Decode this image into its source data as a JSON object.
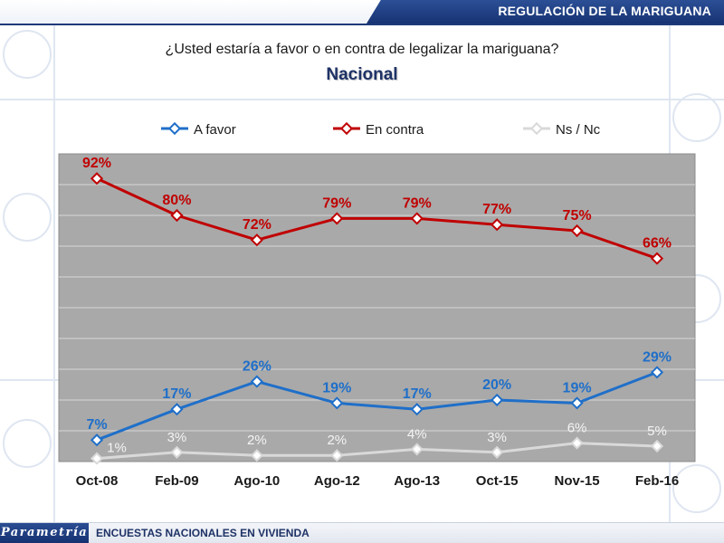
{
  "header": {
    "section_title": "REGULACIÓN DE LA MARIGUANA"
  },
  "question": "¿Usted estaría a favor o en contra de legalizar la mariguana?",
  "subtitle": "Nacional",
  "footer": {
    "logo_text": "Parametría",
    "text": "ENCUESTAS NACIONALES EN VIVIENDA"
  },
  "colors": {
    "plot_background": "#a9a9a9",
    "a_favor": "#1f6fc9",
    "en_contra": "#c00000",
    "ns_nc": "#d9d9d9",
    "brand": "#1e3266"
  },
  "chart_data": {
    "type": "line",
    "categories": [
      "Oct-08",
      "Feb-09",
      "Ago-10",
      "Ago-12",
      "Ago-13",
      "Oct-15",
      "Nov-15",
      "Feb-16"
    ],
    "series": [
      {
        "name": "A favor",
        "values": [
          7,
          17,
          26,
          19,
          17,
          20,
          19,
          29
        ],
        "labels": [
          "7%",
          "17%",
          "26%",
          "19%",
          "17%",
          "20%",
          "19%",
          "29%"
        ]
      },
      {
        "name": "En contra",
        "values": [
          92,
          80,
          72,
          79,
          79,
          77,
          75,
          66
        ],
        "labels": [
          "92%",
          "80%",
          "72%",
          "79%",
          "79%",
          "77%",
          "75%",
          "66%"
        ]
      },
      {
        "name": "Ns / Nc",
        "values": [
          1,
          3,
          2,
          2,
          4,
          3,
          6,
          5
        ],
        "labels": [
          "1%",
          "3%",
          "2%",
          "2%",
          "4%",
          "3%",
          "6%",
          "5%"
        ]
      }
    ],
    "ylim": [
      0,
      100
    ],
    "grid": true,
    "legend_position": "top"
  }
}
